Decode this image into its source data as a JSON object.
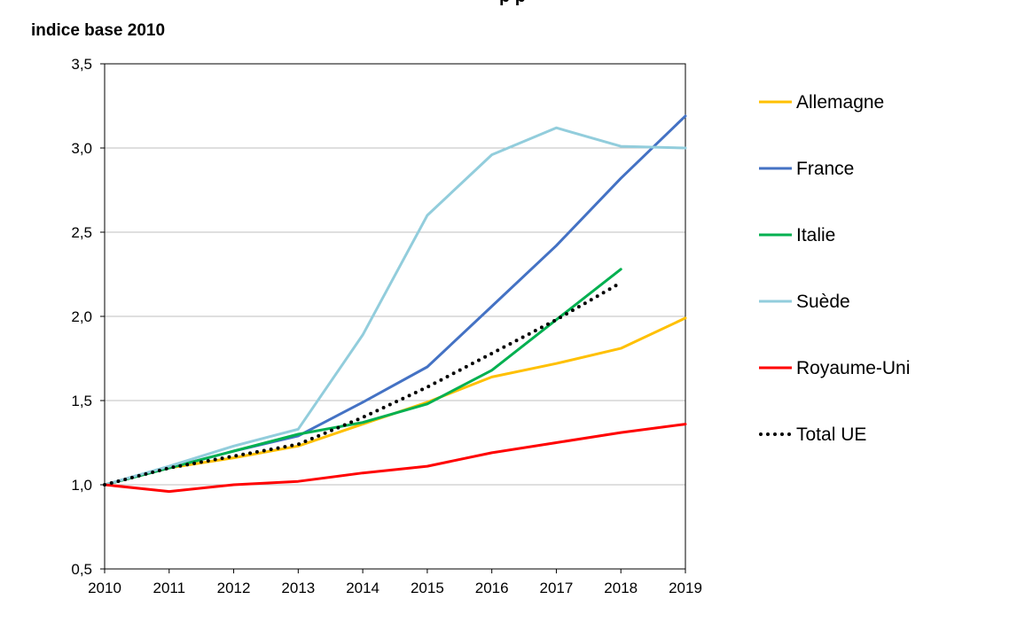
{
  "chart_data": {
    "type": "line",
    "title_partial": "p        p",
    "ylabel": "indice base 2010",
    "x": [
      2010,
      2011,
      2012,
      2013,
      2014,
      2015,
      2016,
      2017,
      2018,
      2019
    ],
    "xlim": [
      2010,
      2019
    ],
    "ylim": [
      0.5,
      3.5
    ],
    "yticks": [
      "0,5",
      "1,0",
      "1,5",
      "2,0",
      "2,5",
      "3,0",
      "3,5"
    ],
    "grid": "horizontal",
    "legend_position": "right",
    "series": [
      {
        "name": "Allemagne",
        "color": "#FFC000",
        "style": "solid",
        "values": [
          1.0,
          1.1,
          1.16,
          1.23,
          1.36,
          1.49,
          1.64,
          1.72,
          1.81,
          1.99
        ]
      },
      {
        "name": "France",
        "color": "#4472C4",
        "style": "solid",
        "values": [
          1.0,
          1.1,
          1.2,
          1.29,
          1.49,
          1.7,
          2.06,
          2.42,
          2.82,
          3.19
        ]
      },
      {
        "name": "Italie",
        "color": "#00B050",
        "style": "solid",
        "values": [
          1.0,
          1.1,
          1.2,
          1.3,
          1.37,
          1.48,
          1.68,
          1.98,
          2.28,
          null
        ]
      },
      {
        "name": "Suède",
        "color": "#92CDDC",
        "style": "solid",
        "values": [
          1.0,
          1.11,
          1.23,
          1.33,
          1.89,
          2.6,
          2.96,
          3.12,
          3.01,
          3.0
        ]
      },
      {
        "name": "Royaume-Uni",
        "color": "#FF0000",
        "style": "solid",
        "values": [
          1.0,
          0.96,
          1.0,
          1.02,
          1.07,
          1.11,
          1.19,
          1.25,
          1.31,
          1.36
        ]
      },
      {
        "name": "Total UE",
        "color": "#000000",
        "style": "dotted",
        "values": [
          1.0,
          1.1,
          1.17,
          1.24,
          1.4,
          1.58,
          1.78,
          1.98,
          2.2,
          null
        ]
      }
    ]
  }
}
